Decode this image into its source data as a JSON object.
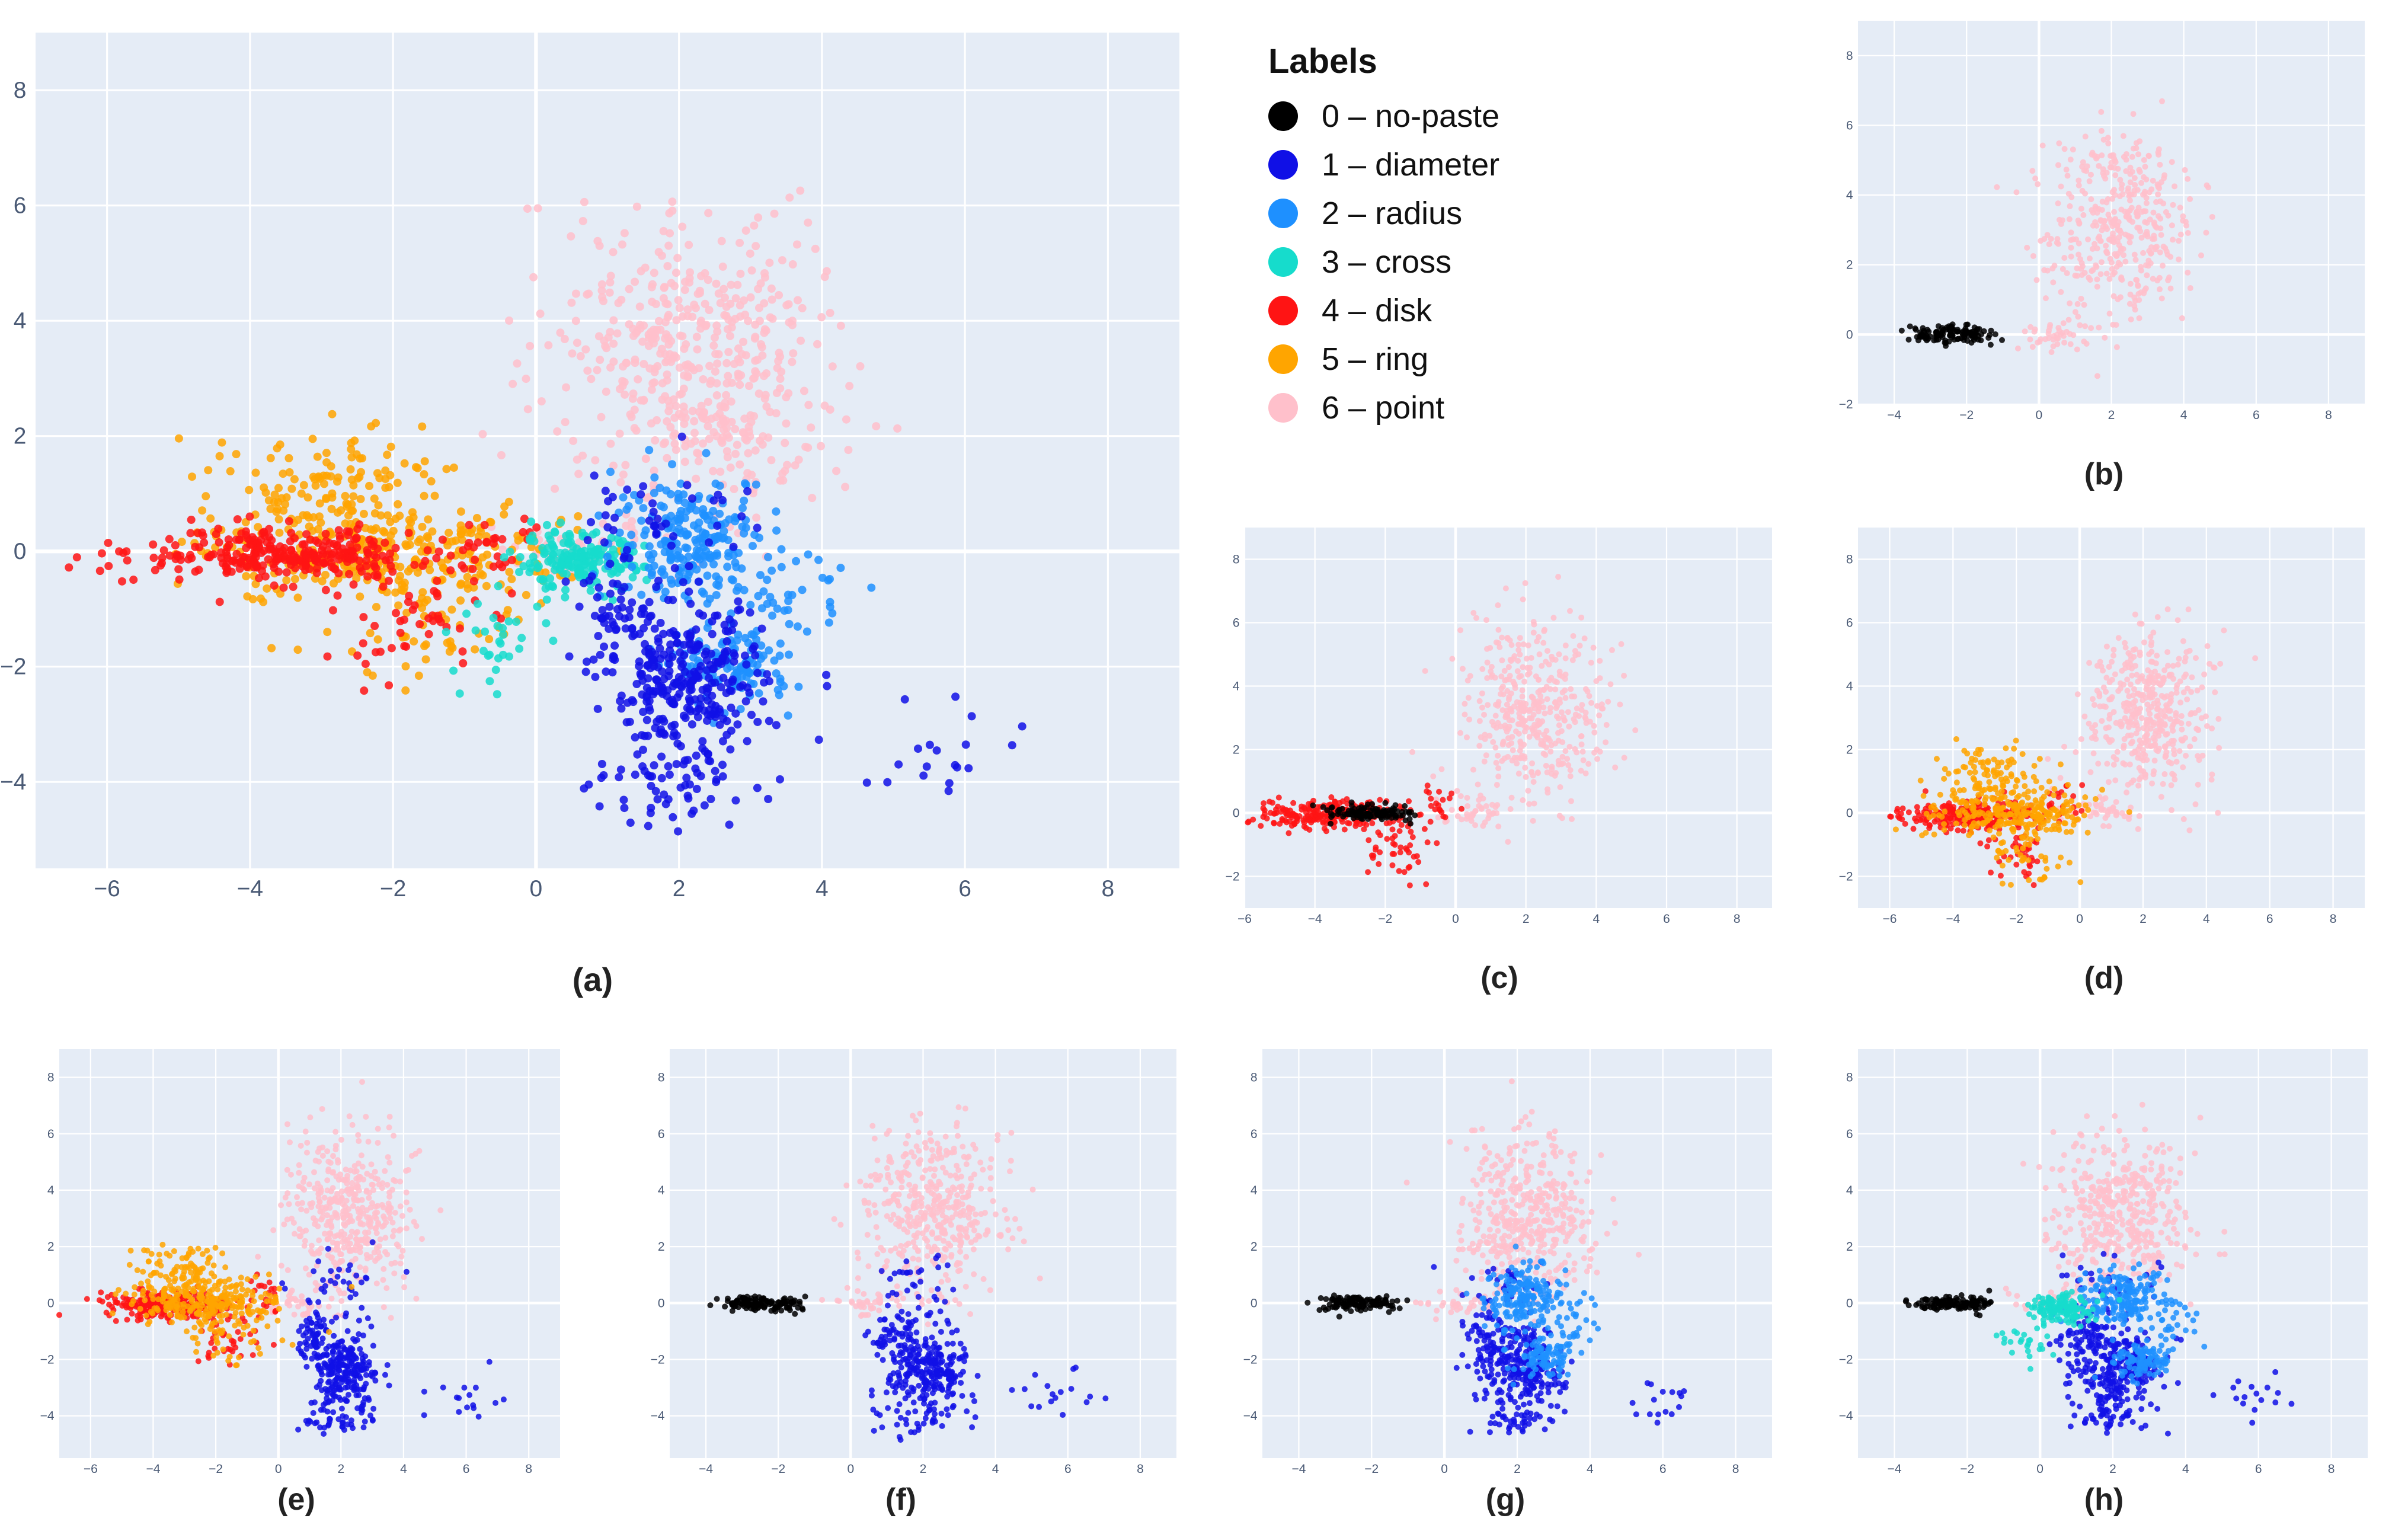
{
  "legend": {
    "title": "Labels",
    "items": [
      {
        "label": "0 – no-paste",
        "color": "#000000"
      },
      {
        "label": "1 – diameter",
        "color": "#1010e6"
      },
      {
        "label": "2 – radius",
        "color": "#1e90ff"
      },
      {
        "label": "3 – cross",
        "color": "#16dccc"
      },
      {
        "label": "4 – disk",
        "color": "#ff1414"
      },
      {
        "label": "5 – ring",
        "color": "#ffa500"
      },
      {
        "label": "6 – point",
        "color": "#ffc0cb"
      }
    ]
  },
  "captions": {
    "a": "(a)",
    "b": "(b)",
    "c": "(c)",
    "d": "(d)",
    "e": "(e)",
    "f": "(f)",
    "g": "(g)",
    "h": "(h)"
  },
  "chart_data": [
    {
      "id": "a",
      "type": "scatter",
      "caption": "(a)",
      "xlim": [
        -7,
        9
      ],
      "ylim": [
        -5.5,
        9
      ],
      "xticks": [
        -6,
        -4,
        -2,
        0,
        2,
        4,
        6,
        8
      ],
      "yticks": [
        -4,
        -2,
        0,
        2,
        4,
        6,
        8
      ],
      "series": [
        "point",
        "ring",
        "disk",
        "cross",
        "radius",
        "diameter"
      ],
      "note": "cluster centers (data units): no-paste (-2.5, 0), diameter (2.1, -2.4), radius (2.2, 0.2), cross (0.8, -0.3), disk (-3.5, -0.1), ring (-2.2, 0.3), point (2.2, 3.0)"
    },
    {
      "id": "b",
      "type": "scatter",
      "caption": "(b)",
      "xlim": [
        -5,
        9
      ],
      "ylim": [
        -2,
        9
      ],
      "xticks": [
        -4,
        -2,
        0,
        2,
        4,
        6,
        8
      ],
      "yticks": [
        -2,
        0,
        2,
        4,
        6,
        8
      ],
      "series": [
        "point",
        "no-paste"
      ]
    },
    {
      "id": "c",
      "type": "scatter",
      "caption": "(c)",
      "xlim": [
        -6,
        9
      ],
      "ylim": [
        -3,
        9
      ],
      "xticks": [
        -6,
        -4,
        -2,
        0,
        2,
        4,
        6,
        8
      ],
      "yticks": [
        -2,
        0,
        2,
        4,
        6,
        8
      ],
      "series": [
        "point",
        "disk",
        "no-paste"
      ]
    },
    {
      "id": "d",
      "type": "scatter",
      "caption": "(d)",
      "xlim": [
        -7,
        9
      ],
      "ylim": [
        -3,
        9
      ],
      "xticks": [
        -6,
        -4,
        -2,
        0,
        2,
        4,
        6,
        8
      ],
      "yticks": [
        -2,
        0,
        2,
        4,
        6,
        8
      ],
      "series": [
        "point",
        "disk",
        "ring"
      ]
    },
    {
      "id": "e",
      "type": "scatter",
      "caption": "(e)",
      "xlim": [
        -7,
        9
      ],
      "ylim": [
        -5.5,
        9
      ],
      "xticks": [
        -6,
        -4,
        -2,
        0,
        2,
        4,
        6,
        8
      ],
      "yticks": [
        -4,
        -2,
        0,
        2,
        4,
        6,
        8
      ],
      "series": [
        "point",
        "diameter",
        "disk",
        "ring"
      ]
    },
    {
      "id": "f",
      "type": "scatter",
      "caption": "(f)",
      "xlim": [
        -5,
        9
      ],
      "ylim": [
        -5.5,
        9
      ],
      "xticks": [
        -4,
        -2,
        0,
        2,
        4,
        6,
        8
      ],
      "yticks": [
        -4,
        -2,
        0,
        2,
        4,
        6,
        8
      ],
      "series": [
        "point",
        "diameter",
        "no-paste"
      ]
    },
    {
      "id": "g",
      "type": "scatter",
      "caption": "(g)",
      "xlim": [
        -5,
        9
      ],
      "ylim": [
        -5.5,
        9
      ],
      "xticks": [
        -4,
        -2,
        0,
        2,
        4,
        6,
        8
      ],
      "yticks": [
        -4,
        -2,
        0,
        2,
        4,
        6,
        8
      ],
      "series": [
        "point",
        "diameter",
        "radius",
        "no-paste"
      ]
    },
    {
      "id": "h",
      "type": "scatter",
      "caption": "(h)",
      "xlim": [
        -5,
        9
      ],
      "ylim": [
        -5.5,
        9
      ],
      "xticks": [
        -4,
        -2,
        0,
        2,
        4,
        6,
        8
      ],
      "yticks": [
        -4,
        -2,
        0,
        2,
        4,
        6,
        8
      ],
      "series": [
        "point",
        "diameter",
        "radius",
        "cross",
        "no-paste"
      ]
    }
  ]
}
